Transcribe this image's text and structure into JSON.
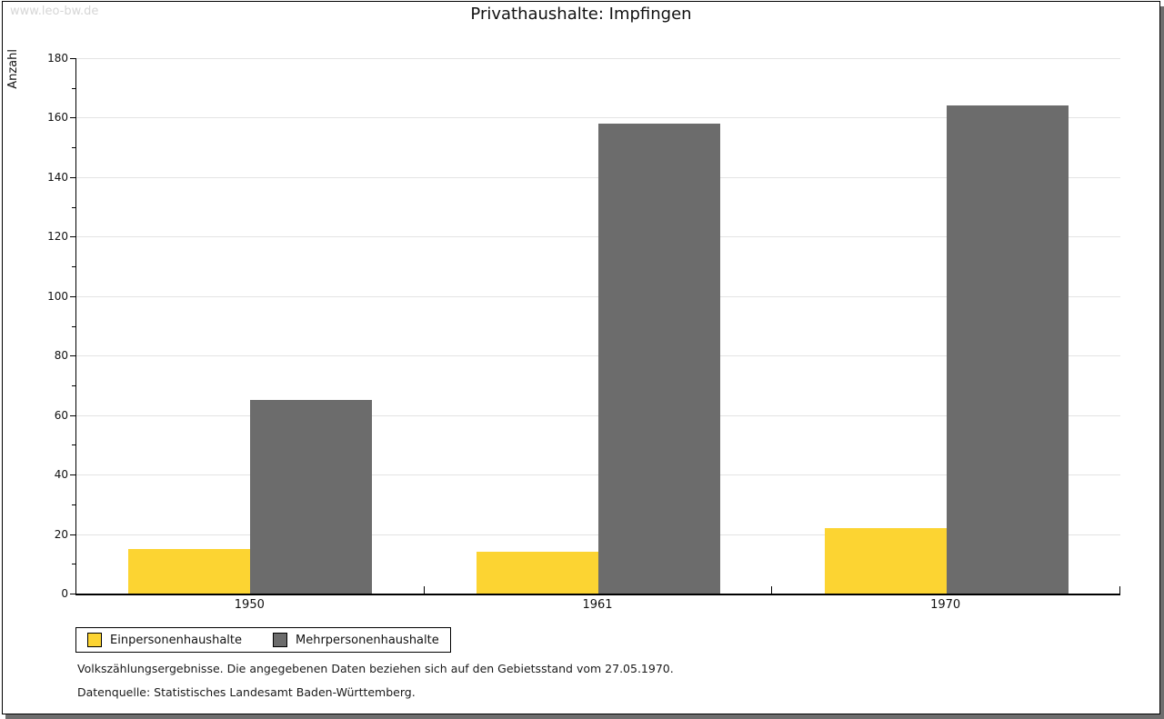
{
  "page": {
    "watermark": "www.leo-bw.de",
    "title": "Privathaushalte: Impfingen"
  },
  "chart_data": {
    "type": "bar",
    "title": "Privathaushalte: Impfingen",
    "categories": [
      "1950",
      "1961",
      "1970"
    ],
    "series": [
      {
        "name": "Einpersonenhaushalte",
        "color": "#FCD432",
        "values": [
          15,
          14,
          22
        ]
      },
      {
        "name": "Mehrpersonenhaushalte",
        "color": "#6C6C6C",
        "values": [
          65,
          158,
          164
        ]
      }
    ],
    "xlabel": "",
    "ylabel": "Anzahl",
    "ylim": [
      0,
      180
    ],
    "ytick_step": 20,
    "yminor_step": 10,
    "grid": true,
    "legend_position": "bottom-left"
  },
  "footer": {
    "note": "Volkszählungsergebnisse. Die angegebenen Daten beziehen sich auf den Gebietsstand vom 27.05.1970.",
    "source": "Datenquelle: Statistisches Landesamt Baden-Württemberg."
  },
  "colors": {
    "series_yellow": "#FCD432",
    "series_gray": "#6C6C6C",
    "gridline": "#E3E3E3",
    "frame_shadow": "#6E6E6E",
    "watermark": "#D6D6D6"
  }
}
